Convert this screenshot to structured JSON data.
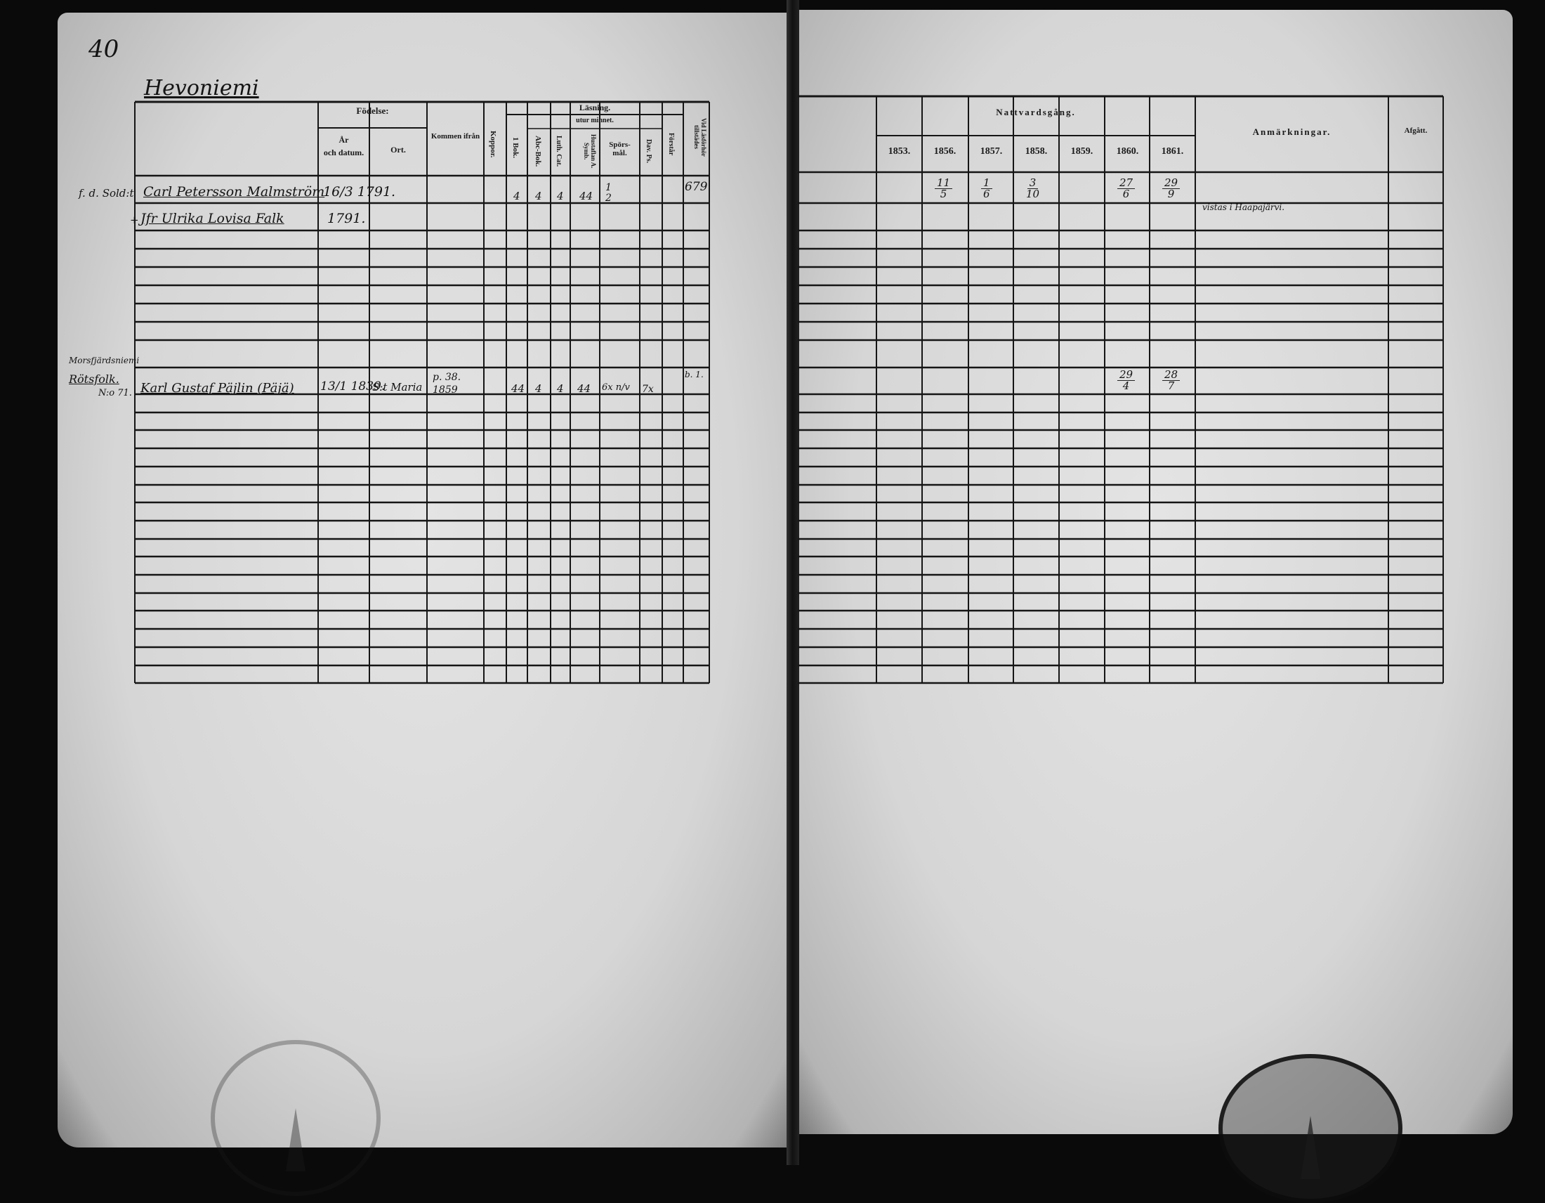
{
  "left_page": {
    "page_number": "40",
    "village": "Hevoniemi",
    "headers": {
      "fodelse": "Födelse:",
      "ar_och_datum": "År\noch datum.",
      "ort": "Ort.",
      "kommen_ifran": "Kommen ifrån",
      "koppor": "Koppor.",
      "lasning": "Läsning.",
      "utur_minnet": "utur minnet.",
      "bok1": "1 Bok.",
      "abc_bok": "Abc-Bok.",
      "luth_cat": "Luth. Cat.",
      "hustaflan": "Hustaflan A. Symb.",
      "sporsmal": "Spörs-\nmål.",
      "dav_ps": "Dav. Ps.",
      "forstar": "Förstår",
      "vid_larforhor": "Vid Läsförhör tillstädes"
    },
    "entries": [
      {
        "margin": "f. d. Sold:t",
        "name": "Carl Petersson Malmström",
        "birth": "16/3 1791.",
        "ort": "",
        "kommen": "",
        "bok1": "4",
        "abc": "4",
        "luth": "4",
        "hustafl": "44",
        "spors": "1 2",
        "dav": "",
        "vid": "679"
      },
      {
        "margin": "+",
        "name": "Jfr Ulrika Lovisa Falk",
        "birth": "1791.",
        "ort": "",
        "kommen": "",
        "bok1": "",
        "abc": "",
        "luth": "",
        "hustafl": "",
        "spors": "",
        "dav": "",
        "vid": ""
      },
      {
        "margin_above": "Morsfjärdsniemi",
        "margin": "Rötsfolk.",
        "margin_no": "N:o 71.",
        "name": "Karl Gustaf Päjlin (Päjä)",
        "birth": "13/1 1839.",
        "ort": "S:t Maria",
        "kommen": "p. 38. 1859",
        "bok1": "44",
        "abc": "4",
        "luth": "4",
        "hustafl": "44",
        "spors": "6x n/v",
        "dav": "7x",
        "vid": "b. 1."
      }
    ]
  },
  "right_page": {
    "headers": {
      "nattvardsgang": "Nattvardsgång.",
      "years": [
        "1853.",
        "1856.",
        "1857.",
        "1858.",
        "1859.",
        "1860.",
        "1861."
      ],
      "anmarkningar": "Anmärkningar.",
      "afgatt": "Afgått."
    }
  },
  "communion": [
    [
      "",
      "11/5",
      "1/6",
      "3/10",
      "",
      "27/6",
      "29/9"
    ],
    [
      "",
      "",
      "",
      "",
      "",
      "",
      ""
    ],
    [
      "",
      "",
      "",
      "",
      "",
      "29/4",
      "28/7"
    ]
  ],
  "remarks": [
    "",
    "vistas i Haapajärvi.",
    ""
  ],
  "stamps": {
    "left": "Konsistorium stamp",
    "right": "Konsistorium stamp"
  }
}
